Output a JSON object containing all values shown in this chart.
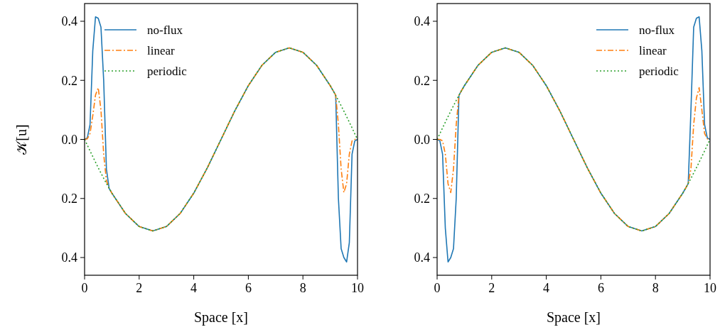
{
  "chart_data": [
    {
      "type": "line",
      "xlabel": "Space [x]",
      "ylabel": "𝒦[u]",
      "xlim": [
        0,
        10
      ],
      "ylim": [
        -0.46,
        0.46
      ],
      "xticks": [
        0,
        2,
        4,
        6,
        8,
        10
      ],
      "yticks": [
        {
          "value": -0.4,
          "label": "0.4"
        },
        {
          "value": -0.2,
          "label": "0.2"
        },
        {
          "value": 0,
          "label": "0.0"
        },
        {
          "value": 0.2,
          "label": "0.2"
        },
        {
          "value": 0.4,
          "label": "0.4"
        }
      ],
      "grid": false,
      "legend": "top left",
      "marker": "none",
      "series": [
        {
          "name": "no-flux",
          "color": "#1f77b4",
          "line_style": "solid",
          "x": [
            0,
            0.1,
            0.2,
            0.3,
            0.4,
            0.5,
            0.6,
            0.7,
            0.8,
            0.9,
            1.0,
            1.5,
            2,
            2.5,
            3,
            3.5,
            4,
            4.5,
            5,
            5.5,
            6,
            6.5,
            7,
            7.5,
            8,
            8.5,
            9,
            9.1,
            9.2,
            9.3,
            9.4,
            9.5,
            9.6,
            9.7,
            9.8,
            9.9,
            10
          ],
          "values": [
            0,
            0.005,
            0.05,
            0.3,
            0.415,
            0.41,
            0.38,
            0.2,
            -0.1,
            -0.166,
            -0.182,
            -0.251,
            -0.295,
            -0.31,
            -0.295,
            -0.251,
            -0.182,
            -0.096,
            0,
            0.096,
            0.182,
            0.251,
            0.295,
            0.31,
            0.295,
            0.251,
            0.182,
            0.166,
            0.15,
            -0.2,
            -0.37,
            -0.4,
            -0.415,
            -0.35,
            -0.05,
            -0.005,
            0
          ]
        },
        {
          "name": "linear",
          "color": "#ff7f0e",
          "line_style": "dashdot",
          "x": [
            0,
            0.1,
            0.2,
            0.3,
            0.4,
            0.5,
            0.6,
            0.7,
            0.8,
            0.9,
            1.0,
            1.5,
            2,
            2.5,
            3,
            3.5,
            4,
            4.5,
            5,
            5.5,
            6,
            6.5,
            7,
            7.5,
            8,
            8.5,
            9,
            9.1,
            9.2,
            9.3,
            9.4,
            9.5,
            9.6,
            9.7,
            9.8,
            9.9,
            10
          ],
          "values": [
            0,
            0.002,
            0.02,
            0.08,
            0.15,
            0.175,
            0.1,
            -0.05,
            -0.14,
            -0.166,
            -0.182,
            -0.251,
            -0.295,
            -0.31,
            -0.295,
            -0.251,
            -0.182,
            -0.096,
            0,
            0.096,
            0.182,
            0.251,
            0.295,
            0.31,
            0.295,
            0.251,
            0.182,
            0.166,
            0.15,
            0.05,
            -0.1,
            -0.18,
            -0.15,
            -0.05,
            -0.005,
            0,
            0
          ]
        },
        {
          "name": "periodic",
          "color": "#2ca02c",
          "line_style": "dotted",
          "x": [
            0,
            0.1,
            0.2,
            0.3,
            0.4,
            0.5,
            0.6,
            0.7,
            0.8,
            0.9,
            1.0,
            1.5,
            2,
            2.5,
            3,
            3.5,
            4,
            4.5,
            5,
            5.5,
            6,
            6.5,
            7,
            7.5,
            8,
            8.5,
            9,
            9.1,
            9.2,
            9.3,
            9.4,
            9.5,
            9.6,
            9.7,
            9.8,
            9.9,
            10
          ],
          "values": [
            0,
            -0.019,
            -0.039,
            -0.058,
            -0.077,
            -0.096,
            -0.114,
            -0.132,
            -0.149,
            -0.166,
            -0.182,
            -0.251,
            -0.295,
            -0.31,
            -0.295,
            -0.251,
            -0.182,
            -0.096,
            0,
            0.096,
            0.182,
            0.251,
            0.295,
            0.31,
            0.295,
            0.251,
            0.182,
            0.166,
            0.149,
            0.132,
            0.114,
            0.096,
            0.077,
            0.058,
            0.039,
            0.019,
            0
          ]
        }
      ]
    },
    {
      "type": "line",
      "xlabel": "Space [x]",
      "xlim": [
        0,
        10
      ],
      "ylim": [
        -0.46,
        0.46
      ],
      "xticks": [
        0,
        2,
        4,
        6,
        8,
        10
      ],
      "yticks": [
        {
          "value": -0.4,
          "label": "0.4"
        },
        {
          "value": -0.2,
          "label": "0.2"
        },
        {
          "value": 0,
          "label": "0.0"
        },
        {
          "value": 0.2,
          "label": "0.2"
        },
        {
          "value": 0.4,
          "label": "0.4"
        }
      ],
      "grid": false,
      "legend": "top right",
      "marker": "none",
      "series": [
        {
          "name": "no-flux",
          "color": "#1f77b4",
          "line_style": "solid",
          "x": [
            0,
            0.1,
            0.2,
            0.3,
            0.4,
            0.5,
            0.6,
            0.7,
            0.8,
            0.9,
            1.0,
            1.5,
            2,
            2.5,
            3,
            3.5,
            4,
            4.5,
            5,
            5.5,
            6,
            6.5,
            7,
            7.5,
            8,
            8.5,
            9,
            9.1,
            9.2,
            9.3,
            9.4,
            9.5,
            9.6,
            9.7,
            9.8,
            9.9,
            10
          ],
          "values": [
            0,
            -0.005,
            -0.05,
            -0.3,
            -0.415,
            -0.4,
            -0.37,
            -0.2,
            0.15,
            0.166,
            0.182,
            0.251,
            0.295,
            0.31,
            0.295,
            0.251,
            0.182,
            0.096,
            0,
            -0.096,
            -0.182,
            -0.251,
            -0.295,
            -0.31,
            -0.295,
            -0.251,
            -0.182,
            -0.166,
            -0.15,
            0.1,
            0.38,
            0.41,
            0.415,
            0.3,
            0.05,
            0.005,
            0
          ]
        },
        {
          "name": "linear",
          "color": "#ff7f0e",
          "line_style": "dashdot",
          "x": [
            0,
            0.1,
            0.2,
            0.3,
            0.4,
            0.5,
            0.6,
            0.7,
            0.8,
            0.9,
            1.0,
            1.5,
            2,
            2.5,
            3,
            3.5,
            4,
            4.5,
            5,
            5.5,
            6,
            6.5,
            7,
            7.5,
            8,
            8.5,
            9,
            9.1,
            9.2,
            9.3,
            9.4,
            9.5,
            9.6,
            9.7,
            9.8,
            9.9,
            10
          ],
          "values": [
            0,
            0,
            -0.005,
            -0.05,
            -0.15,
            -0.18,
            -0.1,
            0.05,
            0.15,
            0.166,
            0.182,
            0.251,
            0.295,
            0.31,
            0.295,
            0.251,
            0.182,
            0.096,
            0,
            -0.096,
            -0.182,
            -0.251,
            -0.295,
            -0.31,
            -0.295,
            -0.251,
            -0.182,
            -0.166,
            -0.149,
            -0.1,
            0.05,
            0.14,
            0.175,
            0.1,
            0.02,
            0.002,
            0
          ]
        },
        {
          "name": "periodic",
          "color": "#2ca02c",
          "line_style": "dotted",
          "x": [
            0,
            0.1,
            0.2,
            0.3,
            0.4,
            0.5,
            0.6,
            0.7,
            0.8,
            0.9,
            1.0,
            1.5,
            2,
            2.5,
            3,
            3.5,
            4,
            4.5,
            5,
            5.5,
            6,
            6.5,
            7,
            7.5,
            8,
            8.5,
            9,
            9.1,
            9.2,
            9.3,
            9.4,
            9.5,
            9.6,
            9.7,
            9.8,
            9.9,
            10
          ],
          "values": [
            0,
            0.019,
            0.039,
            0.058,
            0.077,
            0.096,
            0.114,
            0.132,
            0.149,
            0.166,
            0.182,
            0.251,
            0.295,
            0.31,
            0.295,
            0.251,
            0.182,
            0.096,
            0,
            -0.096,
            -0.182,
            -0.251,
            -0.295,
            -0.31,
            -0.295,
            -0.251,
            -0.182,
            -0.166,
            -0.149,
            -0.132,
            -0.114,
            -0.096,
            -0.077,
            -0.058,
            -0.039,
            -0.019,
            0
          ]
        }
      ]
    }
  ]
}
